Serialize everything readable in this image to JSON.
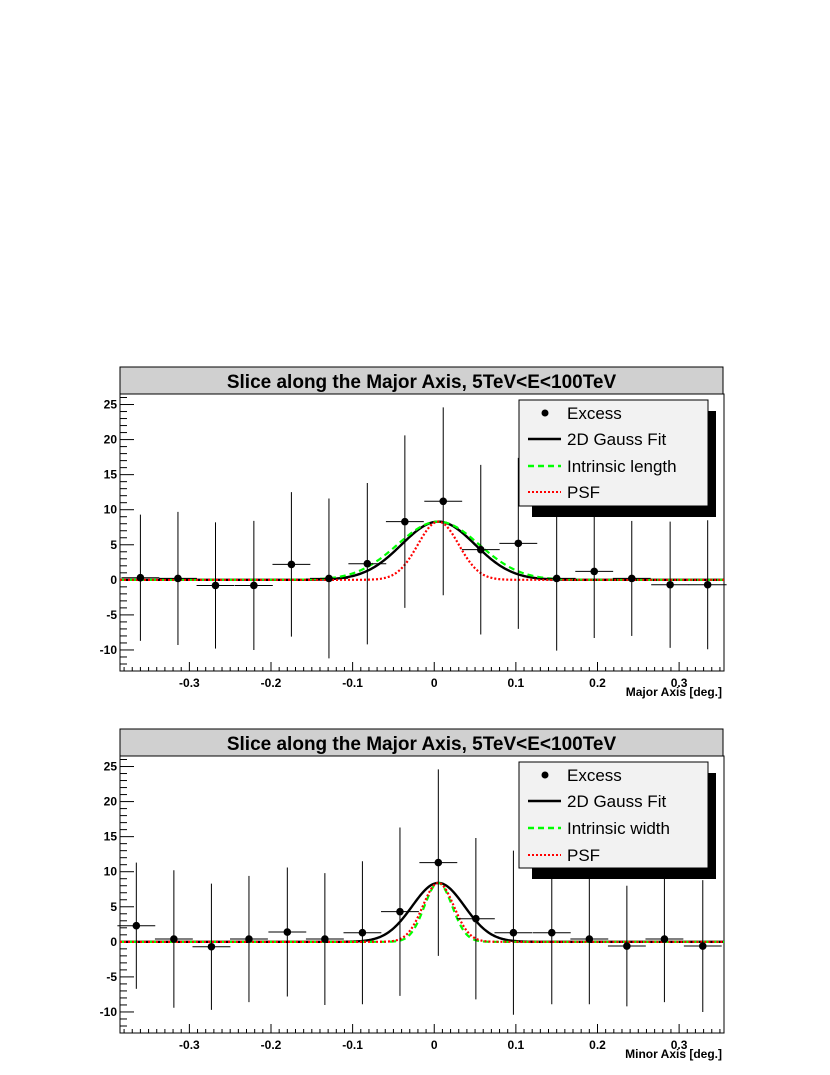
{
  "chart_data": [
    {
      "type": "scatter",
      "title": "Slice along the Major Axis, 5TeV<E<100TeV",
      "xlabel": "Major Axis [deg.]",
      "ylabel": "",
      "xlim": [
        -0.385,
        0.355
      ],
      "ylim": [
        -13,
        26.5
      ],
      "xticks": [
        -0.3,
        -0.2,
        -0.1,
        0,
        0.1,
        0.2,
        0.3
      ],
      "xtick_labels": [
        "-0.3",
        "-0.2",
        "-0.1",
        "0",
        "0.1",
        "0.2",
        "0.3"
      ],
      "yticks": [
        -10,
        -5,
        0,
        5,
        10,
        15,
        20,
        25
      ],
      "ytick_labels": [
        "-10",
        "-5",
        "0",
        "5",
        "10",
        "15",
        "20",
        "25"
      ],
      "grid": false,
      "legend_position": "top-right",
      "points": {
        "name": "Excess",
        "x": [
          -0.36,
          -0.314,
          -0.268,
          -0.221,
          -0.175,
          -0.129,
          -0.082,
          -0.036,
          0.011,
          0.057,
          0.103,
          0.15,
          0.196,
          0.242,
          0.289,
          0.335
        ],
        "y": [
          0.3,
          0.2,
          -0.8,
          -0.8,
          2.2,
          0.2,
          2.3,
          8.3,
          11.2,
          4.3,
          5.2,
          0.2,
          1.2,
          0.2,
          -0.7,
          -0.7
        ],
        "yerr": [
          9.0,
          9.5,
          9.0,
          9.2,
          10.3,
          11.4,
          11.5,
          12.3,
          13.4,
          12.1,
          12.2,
          10.3,
          9.5,
          8.2,
          9.0,
          9.2
        ],
        "xerr": 0.0232
      },
      "curves": [
        {
          "name": "2D Gauss Fit",
          "color": "#000000",
          "style": "solid",
          "amplitude": 8.3,
          "center": 0.005,
          "sigma": 0.045
        },
        {
          "name": "Intrinsic length",
          "color": "#00ff00",
          "style": "dashed",
          "amplitude": 8.3,
          "center": 0.005,
          "sigma": 0.05
        },
        {
          "name": "PSF",
          "color": "#ff0000",
          "style": "dotted",
          "amplitude": 8.3,
          "center": 0.005,
          "sigma": 0.025
        }
      ]
    },
    {
      "type": "scatter",
      "title": "Slice along the Major Axis, 5TeV<E<100TeV",
      "xlabel": "Minor Axis [deg.]",
      "ylabel": "",
      "xlim": [
        -0.385,
        0.355
      ],
      "ylim": [
        -13,
        26.5
      ],
      "xticks": [
        -0.3,
        -0.2,
        -0.1,
        0,
        0.1,
        0.2,
        0.3
      ],
      "xtick_labels": [
        "-0.3",
        "-0.2",
        "-0.1",
        "0",
        "0.1",
        "0.2",
        "0.3"
      ],
      "yticks": [
        -10,
        -5,
        0,
        5,
        10,
        15,
        20,
        25
      ],
      "ytick_labels": [
        "-10",
        "-5",
        "0",
        "5",
        "10",
        "15",
        "20",
        "25"
      ],
      "grid": false,
      "legend_position": "top-right",
      "points": {
        "name": "Excess",
        "x": [
          -0.365,
          -0.319,
          -0.273,
          -0.227,
          -0.18,
          -0.134,
          -0.088,
          -0.042,
          0.005,
          0.051,
          0.097,
          0.144,
          0.19,
          0.236,
          0.282,
          0.329
        ],
        "y": [
          2.3,
          0.4,
          -0.7,
          0.4,
          1.4,
          0.4,
          1.3,
          4.3,
          11.3,
          3.3,
          1.3,
          1.3,
          0.4,
          -0.6,
          0.4,
          -0.6
        ],
        "yerr": [
          9.0,
          9.8,
          9.0,
          9.0,
          9.2,
          9.4,
          10.2,
          12.0,
          13.3,
          11.5,
          11.7,
          10.2,
          9.3,
          8.6,
          9.0,
          9.4
        ],
        "xerr": 0.0232
      },
      "curves": [
        {
          "name": "2D Gauss Fit",
          "color": "#000000",
          "style": "solid",
          "amplitude": 8.4,
          "center": 0.005,
          "sigma": 0.032
        },
        {
          "name": "Intrinsic width",
          "color": "#00ff00",
          "style": "dashed",
          "amplitude": 8.4,
          "center": 0.005,
          "sigma": 0.017
        },
        {
          "name": "PSF",
          "color": "#ff0000",
          "style": "dotted",
          "amplitude": 8.4,
          "center": 0.005,
          "sigma": 0.019
        }
      ]
    }
  ]
}
